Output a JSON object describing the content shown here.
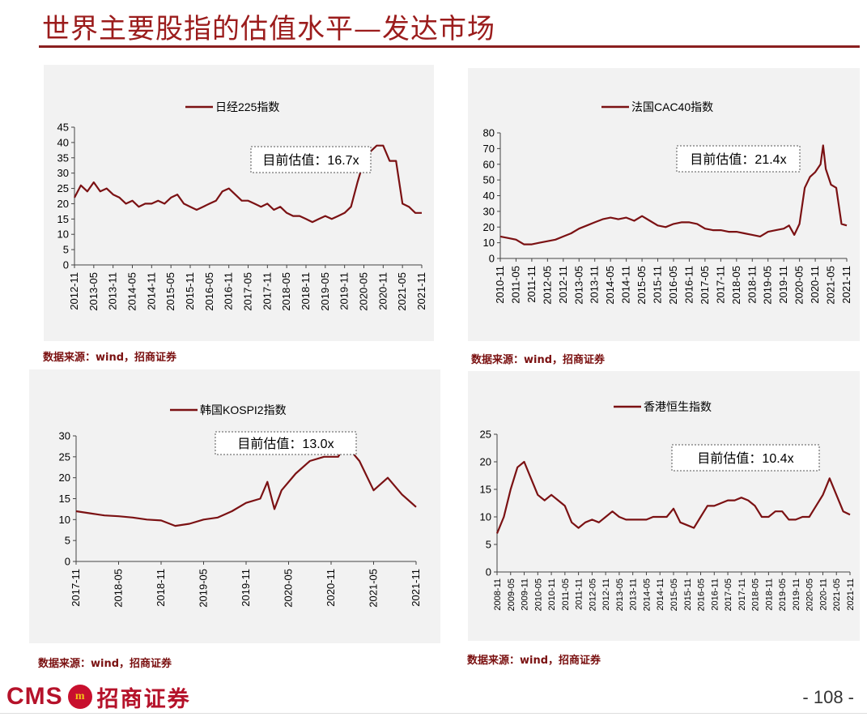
{
  "page": {
    "title": "世界主要股指的估值水平—发达市场",
    "page_number": "- 108 -",
    "logo_text": "CMS",
    "logo_cn": "招商证券",
    "brand_color": "#9b1c1c",
    "line_color": "#7b1113"
  },
  "sources": [
    "数据来源：wind，招商证券",
    "数据来源：wind，招商证券",
    "数据来源：wind，招商证券",
    "数据来源：wind，招商证券"
  ],
  "chart_data": [
    {
      "type": "line",
      "legend": "日经225指数",
      "annotation": "目前估值：16.7x",
      "ylim": [
        0,
        45
      ],
      "yticks": [
        0,
        5,
        10,
        15,
        20,
        25,
        30,
        35,
        40,
        45
      ],
      "xticks": [
        "2012-11",
        "2013-05",
        "2013-11",
        "2014-05",
        "2014-11",
        "2015-05",
        "2015-11",
        "2016-05",
        "2016-11",
        "2017-05",
        "2017-11",
        "2018-05",
        "2018-11",
        "2019-05",
        "2019-11",
        "2020-05",
        "2020-11",
        "2021-05",
        "2021-11"
      ],
      "x": [
        "2012-11",
        "2013-01",
        "2013-03",
        "2013-05",
        "2013-07",
        "2013-09",
        "2013-11",
        "2014-01",
        "2014-03",
        "2014-05",
        "2014-07",
        "2014-09",
        "2014-11",
        "2015-01",
        "2015-03",
        "2015-05",
        "2015-07",
        "2015-09",
        "2015-11",
        "2016-01",
        "2016-03",
        "2016-05",
        "2016-07",
        "2016-09",
        "2016-11",
        "2017-01",
        "2017-03",
        "2017-05",
        "2017-07",
        "2017-09",
        "2017-11",
        "2018-01",
        "2018-03",
        "2018-05",
        "2018-07",
        "2018-09",
        "2018-11",
        "2019-01",
        "2019-03",
        "2019-05",
        "2019-07",
        "2019-09",
        "2019-11",
        "2020-01",
        "2020-03",
        "2020-05",
        "2020-07",
        "2020-09",
        "2020-11",
        "2021-01",
        "2021-03",
        "2021-05",
        "2021-07",
        "2021-09",
        "2021-11"
      ],
      "values": [
        22,
        26,
        24,
        27,
        24,
        25,
        23,
        22,
        20,
        21,
        19,
        20,
        20,
        21,
        20,
        22,
        23,
        20,
        19,
        18,
        19,
        20,
        21,
        24,
        25,
        23,
        21,
        21,
        20,
        19,
        20,
        18,
        19,
        17,
        16,
        16,
        15,
        14,
        15,
        16,
        15,
        16,
        17,
        19,
        27,
        34,
        37,
        39,
        39,
        34,
        34,
        20,
        19,
        17,
        17
      ]
    },
    {
      "type": "line",
      "legend": "法国CAC40指数",
      "annotation": "目前估值：21.4x",
      "ylim": [
        0,
        80
      ],
      "yticks": [
        0,
        10,
        20,
        30,
        40,
        50,
        60,
        70,
        80
      ],
      "xticks": [
        "2010-11",
        "2011-05",
        "2011-11",
        "2012-05",
        "2012-11",
        "2013-05",
        "2013-11",
        "2014-05",
        "2014-11",
        "2015-05",
        "2015-11",
        "2016-05",
        "2016-11",
        "2017-05",
        "2017-11",
        "2018-05",
        "2018-11",
        "2019-05",
        "2019-11",
        "2020-05",
        "2020-11",
        "2021-05",
        "2021-11"
      ],
      "x": [
        "2010-11",
        "2011-02",
        "2011-05",
        "2011-08",
        "2011-11",
        "2012-02",
        "2012-05",
        "2012-08",
        "2012-11",
        "2013-02",
        "2013-05",
        "2013-08",
        "2013-11",
        "2014-02",
        "2014-05",
        "2014-08",
        "2014-11",
        "2015-02",
        "2015-05",
        "2015-08",
        "2015-11",
        "2016-02",
        "2016-05",
        "2016-08",
        "2016-11",
        "2017-02",
        "2017-05",
        "2017-08",
        "2017-11",
        "2018-02",
        "2018-05",
        "2018-08",
        "2018-11",
        "2019-02",
        "2019-05",
        "2019-08",
        "2019-11",
        "2020-01",
        "2020-03",
        "2020-05",
        "2020-07",
        "2020-09",
        "2020-11",
        "2021-01",
        "2021-02",
        "2021-03",
        "2021-05",
        "2021-07",
        "2021-09",
        "2021-11"
      ],
      "values": [
        14,
        13,
        12,
        9,
        9,
        10,
        11,
        12,
        14,
        16,
        19,
        21,
        23,
        25,
        26,
        25,
        26,
        24,
        27,
        24,
        21,
        20,
        22,
        23,
        23,
        22,
        19,
        18,
        18,
        17,
        17,
        16,
        15,
        14,
        17,
        18,
        19,
        21,
        15,
        22,
        45,
        52,
        55,
        60,
        72,
        57,
        47,
        45,
        22,
        21
      ]
    },
    {
      "type": "line",
      "legend": "韩国KOSPI2指数",
      "annotation": "目前估值：13.0x",
      "ylim": [
        0,
        30
      ],
      "yticks": [
        0,
        5,
        10,
        15,
        20,
        25,
        30
      ],
      "xticks": [
        "2017-11",
        "2018-05",
        "2018-11",
        "2019-05",
        "2019-11",
        "2020-05",
        "2020-11",
        "2021-05",
        "2021-11"
      ],
      "x": [
        "2017-11",
        "2018-01",
        "2018-03",
        "2018-05",
        "2018-07",
        "2018-09",
        "2018-11",
        "2019-01",
        "2019-03",
        "2019-05",
        "2019-07",
        "2019-09",
        "2019-11",
        "2020-01",
        "2020-02",
        "2020-03",
        "2020-04",
        "2020-06",
        "2020-08",
        "2020-10",
        "2020-12",
        "2021-01",
        "2021-03",
        "2021-05",
        "2021-07",
        "2021-09",
        "2021-11"
      ],
      "values": [
        12,
        11.5,
        11,
        10.8,
        10.5,
        10,
        9.8,
        8.5,
        9,
        10,
        10.5,
        12,
        14,
        15,
        19,
        12.5,
        17,
        21,
        24,
        25,
        25,
        28,
        24,
        17,
        20,
        16,
        13
      ]
    },
    {
      "type": "line",
      "legend": "香港恒生指数",
      "annotation": "目前估值：10.4x",
      "ylim": [
        0,
        25
      ],
      "yticks": [
        0,
        5,
        10,
        15,
        20,
        25
      ],
      "xticks": [
        "2008-11",
        "2009-05",
        "2009-11",
        "2010-05",
        "2010-11",
        "2011-05",
        "2011-11",
        "2012-05",
        "2012-11",
        "2013-05",
        "2013-11",
        "2014-05",
        "2014-11",
        "2015-05",
        "2015-11",
        "2016-05",
        "2016-11",
        "2017-05",
        "2017-11",
        "2018-05",
        "2018-11",
        "2019-05",
        "2019-11",
        "2020-05",
        "2020-11",
        "2021-05",
        "2021-11"
      ],
      "x": [
        "2008-11",
        "2009-02",
        "2009-05",
        "2009-08",
        "2009-11",
        "2010-02",
        "2010-05",
        "2010-08",
        "2010-11",
        "2011-02",
        "2011-05",
        "2011-08",
        "2011-11",
        "2012-02",
        "2012-05",
        "2012-08",
        "2012-11",
        "2013-02",
        "2013-05",
        "2013-08",
        "2013-11",
        "2014-02",
        "2014-05",
        "2014-08",
        "2014-11",
        "2015-02",
        "2015-05",
        "2015-08",
        "2015-11",
        "2016-02",
        "2016-05",
        "2016-08",
        "2016-11",
        "2017-02",
        "2017-05",
        "2017-08",
        "2017-11",
        "2018-02",
        "2018-05",
        "2018-08",
        "2018-11",
        "2019-02",
        "2019-05",
        "2019-08",
        "2019-11",
        "2020-02",
        "2020-05",
        "2020-08",
        "2020-11",
        "2021-02",
        "2021-05",
        "2021-08",
        "2021-11"
      ],
      "values": [
        7,
        10,
        15,
        19,
        20,
        17,
        14,
        13,
        14,
        13,
        12,
        9,
        8,
        9,
        9.5,
        9,
        10,
        11,
        10,
        9.5,
        9.5,
        9.5,
        9.5,
        10,
        10,
        10,
        11.5,
        9,
        8.5,
        8,
        10,
        12,
        12,
        12.5,
        13,
        13,
        13.5,
        13,
        12,
        10,
        10,
        11,
        11,
        9.5,
        9.5,
        10,
        10,
        12,
        14,
        17,
        14,
        11,
        10.4
      ]
    }
  ]
}
